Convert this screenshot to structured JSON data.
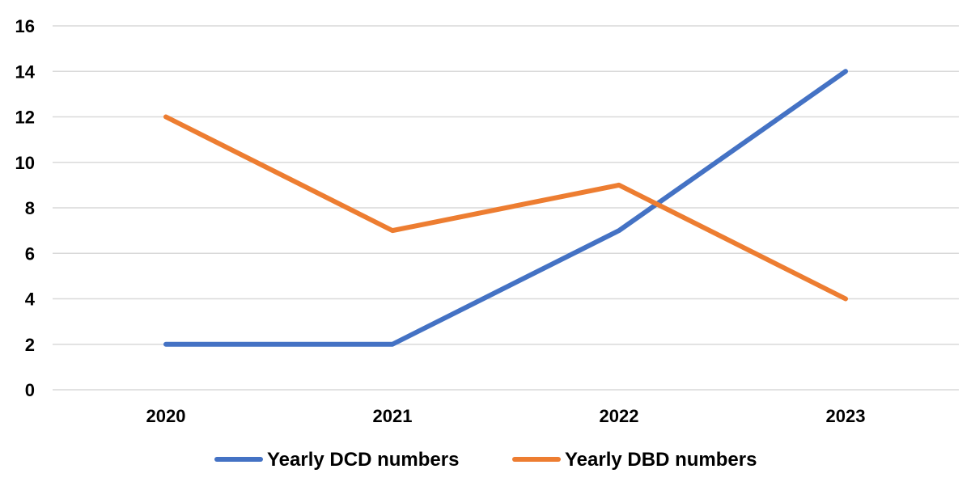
{
  "chart_data": {
    "type": "line",
    "categories": [
      "2020",
      "2021",
      "2022",
      "2023"
    ],
    "series": [
      {
        "name": "Yearly DCD numbers",
        "values": [
          2,
          2,
          7,
          14
        ],
        "color": "#4472c4"
      },
      {
        "name": "Yearly DBD numbers",
        "values": [
          12,
          7,
          9,
          4
        ],
        "color": "#ed7d31"
      }
    ],
    "y_ticks": [
      "0",
      "2",
      "4",
      "6",
      "8",
      "10",
      "12",
      "14",
      "16"
    ],
    "ylim": [
      0,
      16
    ],
    "grid": true,
    "legend_position": "bottom",
    "title": "",
    "xlabel": "",
    "ylabel": ""
  }
}
